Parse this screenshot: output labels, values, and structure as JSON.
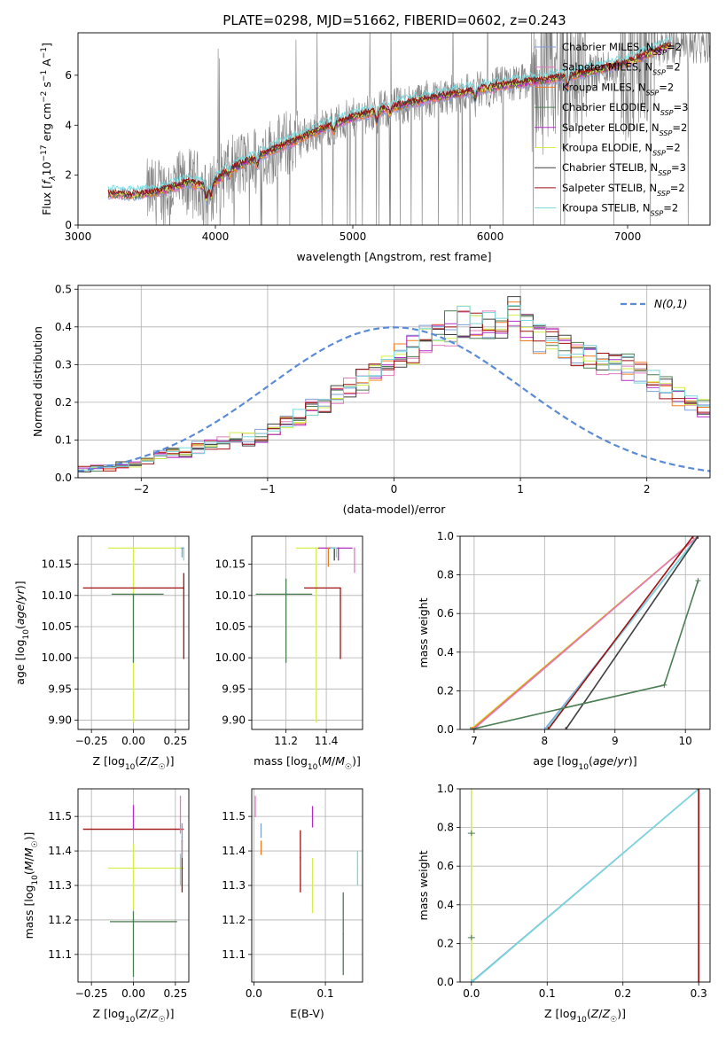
{
  "figure": {
    "title": "PLATE=0298, MJD=51662, FIBERID=0602, z=0.243"
  },
  "colors": {
    "Chabrier MILES": "#7f9fd6",
    "Salpeter MILES": "#e07cc0",
    "Kroupa MILES": "#f07c20",
    "Chabrier ELODIE": "#4b7d52",
    "Salpeter ELODIE": "#b22cc8",
    "Kroupa ELODIE": "#d4ee4c",
    "Chabrier STELIB": "#404040",
    "Salpeter STELIB": "#a01010",
    "Kroupa STELIB": "#78d8dc",
    "data": "#808080",
    "normal": "#5b8bd6"
  },
  "chart_data": [
    {
      "id": "spectrum",
      "type": "line",
      "xlabel": "wavelength [Angstrom, rest frame]",
      "ylabel": "Flux [f_λ 10^-17 erg cm^-2 s^-1 A^-1]",
      "xlim": [
        3000,
        7600
      ],
      "ylim": [
        0,
        7.7
      ],
      "xticks": [
        3000,
        4000,
        5000,
        6000,
        7000
      ],
      "yticks": [
        0,
        2,
        4,
        6
      ],
      "grid": false,
      "legend_position": "right",
      "legend": [
        {
          "name": "Chabrier MILES",
          "nssp": "2"
        },
        {
          "name": "Salpeter MILES",
          "nssp": "2"
        },
        {
          "name": "Kroupa MILES",
          "nssp": "2"
        },
        {
          "name": "Chabrier ELODIE",
          "nssp": "3"
        },
        {
          "name": "Salpeter ELODIE",
          "nssp": "2"
        },
        {
          "name": "Kroupa ELODIE",
          "nssp": "2"
        },
        {
          "name": "Chabrier STELIB",
          "nssp": "3"
        },
        {
          "name": "Salpeter STELIB",
          "nssp": "2"
        },
        {
          "name": "Kroupa STELIB",
          "nssp": "2"
        }
      ],
      "model_continuum": {
        "x": [
          3220,
          3400,
          3600,
          3800,
          3950,
          4100,
          4300,
          4500,
          4800,
          5000,
          5200,
          5500,
          5800,
          6100,
          6400,
          6700,
          7000,
          7300
        ],
        "y": [
          1.25,
          1.2,
          1.35,
          1.7,
          1.5,
          2.2,
          2.7,
          3.2,
          3.9,
          4.3,
          4.6,
          5.0,
          5.3,
          5.6,
          5.8,
          6.1,
          6.5,
          7.2
        ]
      },
      "data_noise_region": [
        3500,
        7600
      ]
    },
    {
      "id": "residuals",
      "type": "line",
      "xlabel": "(data-model)/error",
      "ylabel": "Normed distribution",
      "xlim": [
        -2.5,
        2.5
      ],
      "ylim": [
        0,
        0.51
      ],
      "xticks": [
        -2,
        -1,
        0,
        1,
        2
      ],
      "yticks": [
        0.0,
        0.1,
        0.2,
        0.3,
        0.4,
        0.5
      ],
      "grid": true,
      "legend_position": "top-right",
      "legend_label": "N(0,1)",
      "bin_width": 0.1,
      "reference_hist": [
        0.02,
        0.025,
        0.03,
        0.035,
        0.04,
        0.05,
        0.06,
        0.065,
        0.07,
        0.08,
        0.09,
        0.095,
        0.1,
        0.105,
        0.11,
        0.13,
        0.15,
        0.16,
        0.18,
        0.2,
        0.22,
        0.24,
        0.26,
        0.28,
        0.3,
        0.32,
        0.34,
        0.37,
        0.39,
        0.4,
        0.42,
        0.41,
        0.4,
        0.39,
        0.45,
        0.4,
        0.38,
        0.36,
        0.34,
        0.33,
        0.32,
        0.31,
        0.3,
        0.29,
        0.28,
        0.26,
        0.24,
        0.22,
        0.2,
        0.18
      ]
    },
    {
      "id": "age_vs_Z",
      "type": "scatter",
      "xlabel": "Z [log10(Z/Z☉)]",
      "ylabel": "age [log10(age/yr)]",
      "xlim": [
        -0.33,
        0.33
      ],
      "ylim": [
        9.885,
        10.195
      ],
      "xticks": [
        -0.25,
        0.0,
        0.25
      ],
      "yticks": [
        9.9,
        9.95,
        10.0,
        10.05,
        10.1,
        10.15
      ],
      "grid": true,
      "points": [
        {
          "model": "Kroupa ELODIE",
          "x": 0.0,
          "xerr": [
            0.15,
            0.3
          ],
          "y": 10.176,
          "yerr": [
            0.28,
            0.0
          ]
        },
        {
          "model": "Salpeter STELIB",
          "x": 0.3,
          "xerr": [
            0.6,
            0.0
          ],
          "y": 10.112,
          "yerr": [
            0.114,
            0.024
          ]
        },
        {
          "model": "Chabrier ELODIE",
          "x": 0.0,
          "xerr": [
            0.13,
            0.18
          ],
          "y": 10.102,
          "yerr": [
            0.11,
            0.0
          ]
        },
        {
          "model": "Kroupa STELIB",
          "x": 0.3,
          "xerr": [
            0.02,
            0.0
          ],
          "y": 10.176,
          "yerr": [
            0.02,
            0.0
          ]
        },
        {
          "model": "Chabrier MILES",
          "x": 0.29,
          "xerr": [
            0.0,
            0.01
          ],
          "y": 10.176,
          "yerr": [
            0.015,
            0.0
          ]
        }
      ]
    },
    {
      "id": "age_vs_mass",
      "type": "scatter",
      "xlabel": "mass [log10(M/M☉)]",
      "ylabel": "",
      "xlim": [
        11.03,
        11.58
      ],
      "ylim": [
        9.885,
        10.195
      ],
      "xticks": [
        11.2,
        11.4
      ],
      "yticks": [
        9.9,
        9.95,
        10.0,
        10.05,
        10.1,
        10.15
      ],
      "grid": true,
      "points": [
        {
          "model": "Kroupa ELODIE",
          "x": 11.35,
          "xerr": [
            0.1,
            0.1
          ],
          "y": 10.176,
          "yerr": [
            0.28,
            0.0
          ]
        },
        {
          "model": "Salpeter STELIB",
          "x": 11.47,
          "xerr": [
            0.18,
            0.0
          ],
          "y": 10.112,
          "yerr": [
            0.114,
            0.0
          ]
        },
        {
          "model": "Chabrier ELODIE",
          "x": 11.2,
          "xerr": [
            0.15,
            0.13
          ],
          "y": 10.102,
          "yerr": [
            0.11,
            0.025
          ]
        },
        {
          "model": "Salpeter ELODIE",
          "x": 11.46,
          "xerr": [
            0.1,
            0.07
          ],
          "y": 10.176,
          "yerr": [
            0.02,
            0.0
          ]
        },
        {
          "model": "Salpeter MILES",
          "x": 11.54,
          "xerr": [
            0.0,
            0.0
          ],
          "y": 10.176,
          "yerr": [
            0.04,
            0.0
          ]
        },
        {
          "model": "Chabrier STELIB",
          "x": 11.44,
          "xerr": [
            0.02,
            0.0
          ],
          "y": 10.176,
          "yerr": [
            0.02,
            0.0
          ]
        },
        {
          "model": "Kroupa STELIB",
          "x": 11.45,
          "xerr": [
            0.03,
            0.0
          ],
          "y": 10.176,
          "yerr": [
            0.015,
            0.0
          ]
        },
        {
          "model": "Kroupa MILES",
          "x": 11.41,
          "xerr": [
            0.0,
            0.0
          ],
          "y": 10.176,
          "yerr": [
            0.03,
            0.0
          ]
        }
      ]
    },
    {
      "id": "mass_weight_vs_age",
      "type": "line",
      "xlabel": "age [log10(age/yr)]",
      "ylabel": "mass weight",
      "xlim": [
        6.8,
        10.35
      ],
      "ylim": [
        0,
        1
      ],
      "xticks": [
        7,
        8,
        9,
        10
      ],
      "yticks": [
        0.0,
        0.2,
        0.4,
        0.6,
        0.8,
        1.0
      ],
      "grid": true,
      "series": [
        {
          "model": "Kroupa ELODIE",
          "x": [
            6.95,
            10.18
          ],
          "y": [
            0.0,
            1.0
          ]
        },
        {
          "model": "Kroupa MILES",
          "x": [
            6.97,
            10.18
          ],
          "y": [
            0.0,
            1.0
          ]
        },
        {
          "model": "Salpeter MILES",
          "x": [
            6.99,
            10.18
          ],
          "y": [
            0.0,
            1.0
          ]
        },
        {
          "model": "Chabrier MILES",
          "x": [
            8.0,
            10.18
          ],
          "y": [
            0.0,
            1.0
          ]
        },
        {
          "model": "Kroupa STELIB",
          "x": [
            8.02,
            10.18
          ],
          "y": [
            0.0,
            1.0
          ]
        },
        {
          "model": "Salpeter STELIB",
          "x": [
            8.05,
            10.11
          ],
          "y": [
            0.0,
            1.0
          ]
        },
        {
          "model": "Chabrier STELIB",
          "x": [
            8.3,
            10.18
          ],
          "y": [
            0.0,
            1.0
          ]
        },
        {
          "model": "Chabrier ELODIE",
          "x": [
            6.95,
            9.7,
            10.18
          ],
          "y": [
            0.0,
            0.23,
            0.77
          ]
        }
      ]
    },
    {
      "id": "mass_vs_Z",
      "type": "scatter",
      "xlabel": "Z [log10(Z/Z☉)]",
      "ylabel": "mass [log10(M/M☉)]",
      "xlim": [
        -0.33,
        0.33
      ],
      "ylim": [
        11.02,
        11.58
      ],
      "xticks": [
        -0.25,
        0.0,
        0.25
      ],
      "yticks": [
        11.1,
        11.2,
        11.3,
        11.4,
        11.5
      ],
      "grid": true,
      "points": [
        {
          "model": "Salpeter STELIB",
          "x": 0.0,
          "xerr": [
            0.3,
            0.3
          ],
          "y": 11.463,
          "yerr": [
            0.0,
            0.0
          ]
        },
        {
          "model": "Salpeter ELODIE",
          "x": 0.0,
          "xerr": [
            0.0,
            0.0
          ],
          "y": 11.463,
          "yerr": [
            0.0,
            0.07
          ]
        },
        {
          "model": "Kroupa ELODIE",
          "x": 0.0,
          "xerr": [
            0.15,
            0.3
          ],
          "y": 11.35,
          "yerr": [
            0.12,
            0.07
          ]
        },
        {
          "model": "Chabrier ELODIE",
          "x": 0.0,
          "xerr": [
            0.14,
            0.26
          ],
          "y": 11.195,
          "yerr": [
            0.16,
            0.03
          ]
        },
        {
          "model": "Salpeter MILES",
          "x": 0.28,
          "xerr": [
            0.0,
            0.0
          ],
          "y": 11.5,
          "yerr": [
            0.05,
            0.06
          ]
        },
        {
          "model": "Kroupa STELIB",
          "x": 0.28,
          "xerr": [
            0.0,
            0.0
          ],
          "y": 11.39,
          "yerr": [
            0.09,
            0.0
          ]
        },
        {
          "model": "Salpeter STELIB",
          "x": 0.29,
          "xerr": [
            0.0,
            0.0
          ],
          "y": 11.43,
          "yerr": [
            0.15,
            0.0
          ]
        },
        {
          "model": "Chabrier MILES",
          "x": 0.29,
          "xerr": [
            0.0,
            0.0
          ],
          "y": 11.44,
          "yerr": [
            0.06,
            0.04
          ]
        }
      ]
    },
    {
      "id": "mass_vs_EBV",
      "type": "scatter",
      "xlabel": "E(B-V)",
      "ylabel": "",
      "xlim": [
        -0.003,
        0.152
      ],
      "ylim": [
        11.02,
        11.58
      ],
      "xticks": [
        0.0,
        0.1
      ],
      "yticks": [
        11.1,
        11.2,
        11.3,
        11.4,
        11.5
      ],
      "grid": true,
      "points": [
        {
          "model": "Salpeter MILES",
          "x": 0.002,
          "y": 11.5,
          "yerr": [
            0.0,
            0.06
          ]
        },
        {
          "model": "Chabrier MILES",
          "x": 0.01,
          "y": 11.44,
          "yerr": [
            0.0,
            0.04
          ]
        },
        {
          "model": "Kroupa MILES",
          "x": 0.01,
          "y": 11.39,
          "yerr": [
            0.0,
            0.04
          ]
        },
        {
          "model": "Salpeter STELIB",
          "x": 0.065,
          "y": 11.38,
          "yerr": [
            0.1,
            0.08
          ]
        },
        {
          "model": "Salpeter ELODIE",
          "x": 0.082,
          "y": 11.47,
          "yerr": [
            0.0,
            0.06
          ]
        },
        {
          "model": "Kroupa ELODIE",
          "x": 0.082,
          "y": 11.32,
          "yerr": [
            0.1,
            0.06
          ]
        },
        {
          "model": "Chabrier ELODIE",
          "x": 0.125,
          "y": 11.16,
          "yerr": [
            0.12,
            0.12
          ]
        },
        {
          "model": "Kroupa STELIB",
          "x": 0.145,
          "y": 11.35,
          "yerr": [
            0.05,
            0.05
          ]
        }
      ]
    },
    {
      "id": "mass_weight_vs_Z",
      "type": "line",
      "xlabel": "Z [log10(Z/Z☉)]",
      "ylabel": "mass weight",
      "xlim": [
        -0.015,
        0.315
      ],
      "ylim": [
        0,
        1
      ],
      "xticks": [
        0.0,
        0.1,
        0.2,
        0.3
      ],
      "yticks": [
        0.0,
        0.2,
        0.4,
        0.6,
        0.8,
        1.0
      ],
      "grid": true,
      "series": [
        {
          "model": "Kroupa ELODIE",
          "x": [
            0.0,
            0.0
          ],
          "y": [
            0.0,
            1.0
          ]
        },
        {
          "model": "Chabrier MILES",
          "x": [
            0.0,
            0.3
          ],
          "y": [
            0.0,
            1.0
          ]
        },
        {
          "model": "Kroupa STELIB",
          "x": [
            0.001,
            0.3
          ],
          "y": [
            0.0,
            1.0
          ]
        },
        {
          "model": "Kroupa MILES",
          "x": [
            0.3,
            0.3
          ],
          "y": [
            0.0,
            1.0
          ]
        },
        {
          "model": "Salpeter STELIB",
          "x": [
            0.3,
            0.3
          ],
          "y": [
            0.0,
            1.0
          ]
        }
      ],
      "markers": [
        {
          "model": "Chabrier ELODIE",
          "x": 0.0,
          "y": 0.77
        },
        {
          "model": "Chabrier ELODIE",
          "x": 0.0,
          "y": 0.23
        }
      ]
    }
  ]
}
